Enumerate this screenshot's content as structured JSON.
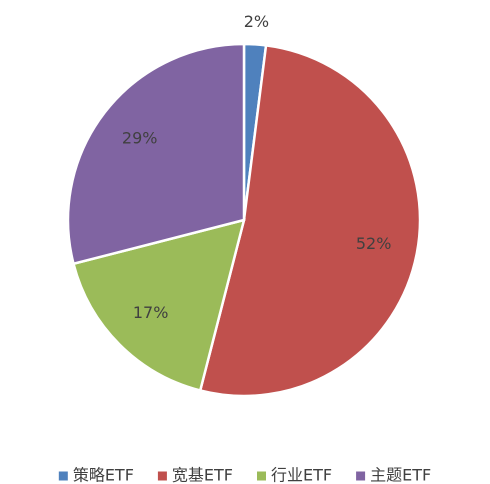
{
  "chart_data": {
    "type": "pie",
    "categories": [
      "策略ETF",
      "宽基ETF",
      "行业ETF",
      "主题ETF"
    ],
    "values": [
      2,
      52,
      17,
      29
    ],
    "value_labels": [
      "2%",
      "52%",
      "17%",
      "29%"
    ],
    "colors": [
      "#4f81bd",
      "#c0504d",
      "#9bbb59",
      "#8064a2"
    ],
    "legend": "bottom"
  }
}
